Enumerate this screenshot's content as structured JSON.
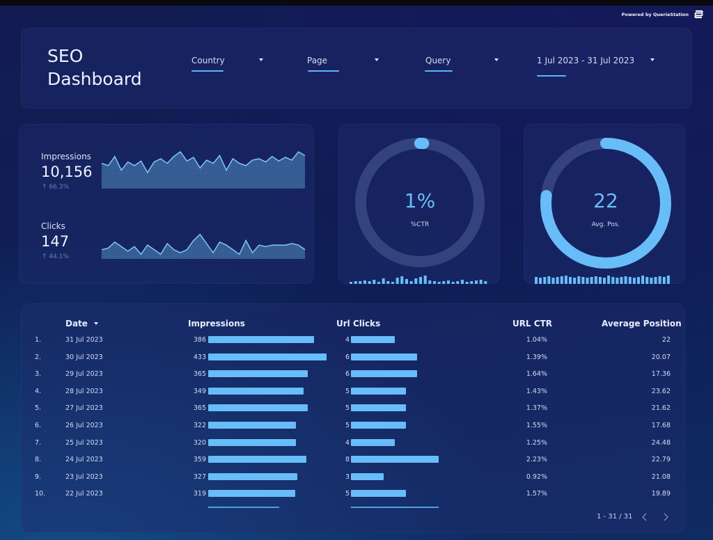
{
  "brand": {
    "powered_by": "Powered by QuerieStation"
  },
  "header": {
    "title_line1": "SEO",
    "title_line2": "Dashboard"
  },
  "filters": [
    {
      "label": "Country"
    },
    {
      "label": "Page"
    },
    {
      "label": "Query"
    },
    {
      "label": "1 Jul 2023 - 31 Jul 2023"
    }
  ],
  "metrics": {
    "impressions": {
      "label": "Impressions",
      "value": "10,156",
      "delta": "66.3%",
      "spark": [
        0.55,
        0.5,
        0.7,
        0.4,
        0.58,
        0.5,
        0.6,
        0.35,
        0.58,
        0.65,
        0.55,
        0.7,
        0.8,
        0.6,
        0.68,
        0.45,
        0.62,
        0.55,
        0.72,
        0.4,
        0.65,
        0.55,
        0.5,
        0.62,
        0.65,
        0.58,
        0.7,
        0.6,
        0.68,
        0.62,
        0.8,
        0.72
      ]
    },
    "clicks": {
      "label": "Clicks",
      "value": "147",
      "delta": "44.1%",
      "spark": [
        0.3,
        0.35,
        0.55,
        0.4,
        0.25,
        0.4,
        0.15,
        0.45,
        0.3,
        0.15,
        0.5,
        0.3,
        0.2,
        0.3,
        0.6,
        0.8,
        0.5,
        0.2,
        0.55,
        0.45,
        0.3,
        0.15,
        0.6,
        0.2,
        0.45,
        0.4,
        0.45,
        0.45,
        0.45,
        0.5,
        0.45,
        0.3
      ]
    },
    "ctr": {
      "value": "1%",
      "label": "%CTR",
      "fill": 0.01,
      "bars": [
        3,
        4,
        4,
        5,
        4,
        6,
        3,
        8,
        4,
        3,
        9,
        11,
        7,
        4,
        8,
        10,
        12,
        5,
        4,
        3,
        4,
        5,
        3,
        4,
        6,
        3,
        4,
        5,
        6,
        4
      ]
    },
    "position": {
      "value": "22",
      "label": "Avg. Pos.",
      "fill": 0.77,
      "bars": [
        10,
        9,
        10,
        11,
        9,
        10,
        11,
        12,
        10,
        9,
        11,
        10,
        9,
        10,
        11,
        10,
        9,
        12,
        10,
        9,
        10,
        11,
        10,
        9,
        10,
        12,
        10,
        9,
        10,
        11,
        10,
        12
      ]
    }
  },
  "table": {
    "headers": {
      "date": "Date",
      "impressions": "Impressions",
      "clicks": "Url Clicks",
      "ctr": "URL CTR",
      "position": "Average Position"
    },
    "rows": [
      {
        "idx": "1.",
        "date": "31 Jul 2023",
        "impressions": 386,
        "clicks": 4,
        "ctr": "1.04%",
        "position": "22"
      },
      {
        "idx": "2.",
        "date": "30 Jul 2023",
        "impressions": 433,
        "clicks": 6,
        "ctr": "1.39%",
        "position": "20.07"
      },
      {
        "idx": "3.",
        "date": "29 Jul 2023",
        "impressions": 365,
        "clicks": 6,
        "ctr": "1.64%",
        "position": "17.36"
      },
      {
        "idx": "4.",
        "date": "28 Jul 2023",
        "impressions": 349,
        "clicks": 5,
        "ctr": "1.43%",
        "position": "23.62"
      },
      {
        "idx": "5.",
        "date": "27 Jul 2023",
        "impressions": 365,
        "clicks": 5,
        "ctr": "1.37%",
        "position": "21.62"
      },
      {
        "idx": "6.",
        "date": "26 Jul 2023",
        "impressions": 322,
        "clicks": 5,
        "ctr": "1.55%",
        "position": "17.68"
      },
      {
        "idx": "7.",
        "date": "25 Jul 2023",
        "impressions": 320,
        "clicks": 4,
        "ctr": "1.25%",
        "position": "24.48"
      },
      {
        "idx": "8.",
        "date": "24 Jul 2023",
        "impressions": 359,
        "clicks": 8,
        "ctr": "2.23%",
        "position": "22.79"
      },
      {
        "idx": "9.",
        "date": "23 Jul 2023",
        "impressions": 327,
        "clicks": 3,
        "ctr": "0.92%",
        "position": "21.08"
      },
      {
        "idx": "10.",
        "date": "22 Jul 2023",
        "impressions": 319,
        "clicks": 5,
        "ctr": "1.57%",
        "position": "19.89"
      }
    ]
  },
  "pager": {
    "text": "1 - 31 / 31"
  },
  "colors": {
    "accent": "#68bdf9",
    "track": "#34437e",
    "background": "#0e1f55"
  }
}
